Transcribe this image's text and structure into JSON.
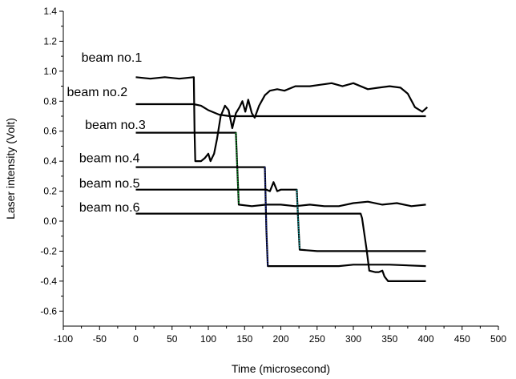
{
  "chart_data": {
    "type": "line",
    "title": "",
    "xlabel": "Time (microsecond)",
    "ylabel": "Laser intensity (Volt)",
    "xlim": [
      -100,
      500
    ],
    "ylim": [
      -0.7,
      1.4
    ],
    "xticks": [
      -100,
      -50,
      0,
      50,
      100,
      150,
      200,
      250,
      300,
      350,
      400,
      450,
      500
    ],
    "xtick_labels": [
      "-100",
      "-50",
      "0",
      "50",
      "100",
      "150",
      "200",
      "250",
      "300",
      "350",
      "400",
      "450",
      "500"
    ],
    "yticks": [
      -0.6,
      -0.4,
      -0.2,
      0.0,
      0.2,
      0.4,
      0.6,
      0.8,
      1.0,
      1.2,
      1.4
    ],
    "ytick_labels": [
      "-0.6",
      "-0.4",
      "-0.2",
      "0.0",
      "0.2",
      "0.4",
      "0.6",
      "0.8",
      "1.0",
      "1.2",
      "1.4"
    ],
    "grid": false,
    "legend": "none",
    "series": [
      {
        "name": "beam no.1",
        "label_anchor": [
          -75,
          1.09
        ],
        "points": [
          [
            0,
            0.96
          ],
          [
            20,
            0.95
          ],
          [
            40,
            0.96
          ],
          [
            60,
            0.95
          ],
          [
            80,
            0.96
          ],
          [
            81,
            0.6
          ],
          [
            82,
            0.4
          ],
          [
            90,
            0.4
          ],
          [
            95,
            0.42
          ],
          [
            100,
            0.45
          ],
          [
            103,
            0.4
          ],
          [
            108,
            0.45
          ],
          [
            112,
            0.55
          ],
          [
            117,
            0.7
          ],
          [
            123,
            0.77
          ],
          [
            128,
            0.74
          ],
          [
            133,
            0.62
          ],
          [
            138,
            0.72
          ],
          [
            143,
            0.76
          ],
          [
            147,
            0.8
          ],
          [
            151,
            0.73
          ],
          [
            155,
            0.81
          ],
          [
            160,
            0.72
          ],
          [
            164,
            0.69
          ],
          [
            170,
            0.77
          ],
          [
            178,
            0.84
          ],
          [
            185,
            0.87
          ],
          [
            195,
            0.88
          ],
          [
            205,
            0.87
          ],
          [
            220,
            0.9
          ],
          [
            240,
            0.9
          ],
          [
            255,
            0.91
          ],
          [
            270,
            0.92
          ],
          [
            285,
            0.9
          ],
          [
            300,
            0.92
          ],
          [
            320,
            0.88
          ],
          [
            335,
            0.89
          ],
          [
            350,
            0.9
          ],
          [
            365,
            0.89
          ],
          [
            375,
            0.85
          ],
          [
            385,
            0.76
          ],
          [
            395,
            0.73
          ],
          [
            402,
            0.76
          ]
        ]
      },
      {
        "name": "beam no.2",
        "label_anchor": [
          -95,
          0.86
        ],
        "points": [
          [
            0,
            0.78
          ],
          [
            40,
            0.78
          ],
          [
            70,
            0.78
          ],
          [
            80,
            0.78
          ],
          [
            90,
            0.77
          ],
          [
            100,
            0.74
          ],
          [
            115,
            0.71
          ],
          [
            130,
            0.7
          ],
          [
            160,
            0.7
          ],
          [
            200,
            0.7
          ],
          [
            250,
            0.7
          ],
          [
            300,
            0.7
          ],
          [
            350,
            0.7
          ],
          [
            380,
            0.7
          ],
          [
            400,
            0.7
          ]
        ]
      },
      {
        "name": "beam no.3",
        "label_anchor": [
          -70,
          0.64
        ],
        "points": [
          [
            0,
            0.59
          ],
          [
            50,
            0.59
          ],
          [
            100,
            0.59
          ],
          [
            130,
            0.59
          ],
          [
            138,
            0.59
          ],
          [
            140,
            0.35
          ],
          [
            142,
            0.11
          ],
          [
            160,
            0.1
          ],
          [
            180,
            0.11
          ],
          [
            200,
            0.11
          ],
          [
            220,
            0.1
          ],
          [
            240,
            0.11
          ],
          [
            260,
            0.1
          ],
          [
            280,
            0.1
          ],
          [
            300,
            0.12
          ],
          [
            320,
            0.13
          ],
          [
            340,
            0.11
          ],
          [
            360,
            0.12
          ],
          [
            380,
            0.1
          ],
          [
            400,
            0.11
          ]
        ]
      },
      {
        "name": "beam no.4",
        "label_anchor": [
          -78,
          0.42
        ],
        "points": [
          [
            0,
            0.36
          ],
          [
            50,
            0.36
          ],
          [
            100,
            0.36
          ],
          [
            150,
            0.36
          ],
          [
            178,
            0.36
          ],
          [
            180,
            -0.05
          ],
          [
            182,
            -0.3
          ],
          [
            200,
            -0.3
          ],
          [
            250,
            -0.3
          ],
          [
            280,
            -0.3
          ],
          [
            300,
            -0.29
          ],
          [
            350,
            -0.29
          ],
          [
            400,
            -0.3
          ]
        ]
      },
      {
        "name": "beam no.5",
        "label_anchor": [
          -78,
          0.25
        ],
        "points": [
          [
            0,
            0.21
          ],
          [
            50,
            0.21
          ],
          [
            100,
            0.21
          ],
          [
            150,
            0.21
          ],
          [
            180,
            0.21
          ],
          [
            185,
            0.2
          ],
          [
            190,
            0.26
          ],
          [
            195,
            0.2
          ],
          [
            200,
            0.21
          ],
          [
            222,
            0.21
          ],
          [
            224,
            0.0
          ],
          [
            226,
            -0.19
          ],
          [
            250,
            -0.2
          ],
          [
            300,
            -0.2
          ],
          [
            350,
            -0.2
          ],
          [
            400,
            -0.2
          ]
        ]
      },
      {
        "name": "beam no.6",
        "label_anchor": [
          -78,
          0.09
        ],
        "points": [
          [
            0,
            0.05
          ],
          [
            50,
            0.05
          ],
          [
            100,
            0.05
          ],
          [
            150,
            0.05
          ],
          [
            200,
            0.05
          ],
          [
            250,
            0.05
          ],
          [
            300,
            0.05
          ],
          [
            310,
            0.05
          ],
          [
            312,
            0.02
          ],
          [
            315,
            -0.08
          ],
          [
            318,
            -0.18
          ],
          [
            322,
            -0.33
          ],
          [
            330,
            -0.34
          ],
          [
            335,
            -0.34
          ],
          [
            340,
            -0.33
          ],
          [
            343,
            -0.37
          ],
          [
            348,
            -0.4
          ],
          [
            360,
            -0.4
          ],
          [
            380,
            -0.4
          ],
          [
            400,
            -0.4
          ]
        ]
      }
    ],
    "transition_colors": {
      "beam no.3": "#00a020",
      "beam no.4": "#1020a0",
      "beam no.5": "#00a0a0"
    },
    "line_color": "#000000"
  }
}
